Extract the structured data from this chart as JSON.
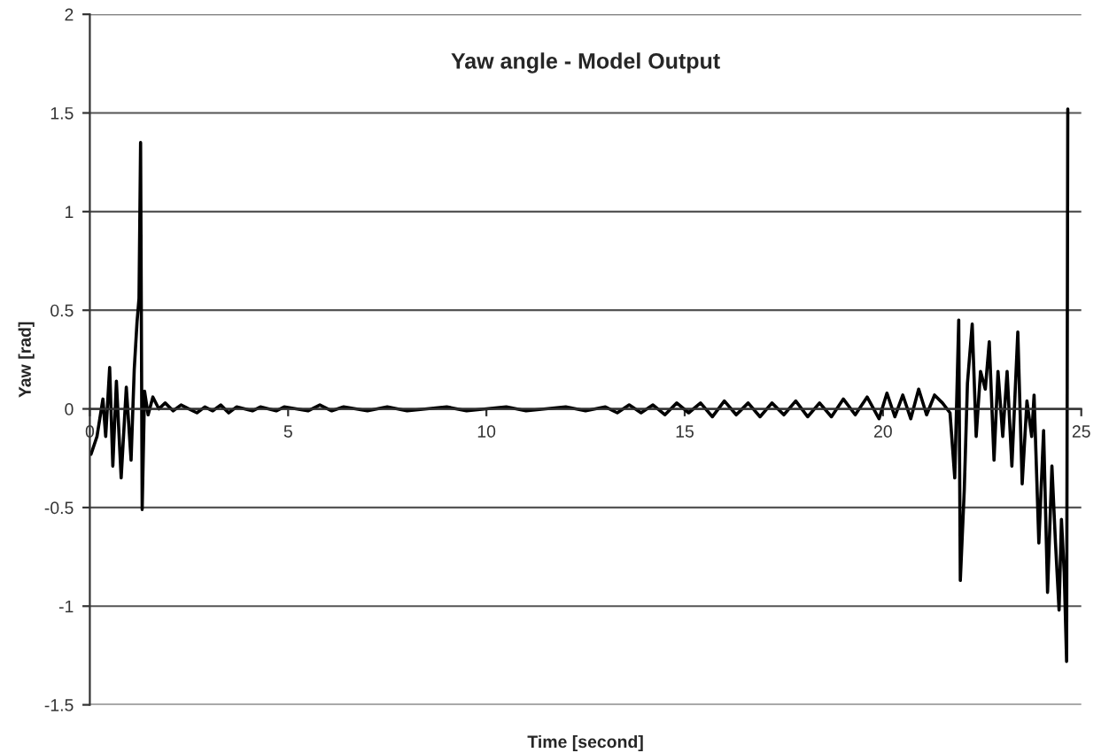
{
  "chart_data": {
    "type": "line",
    "title": "Yaw angle - Model Output",
    "xlabel": "Time [second]",
    "ylabel": "Yaw [rad]",
    "xlim": [
      0,
      25
    ],
    "xticks": [
      {
        "value": 0,
        "label": "0"
      },
      5,
      10,
      15,
      20,
      25
    ],
    "ylim": [
      -1.5,
      2
    ],
    "yticks": [
      -1.5,
      -1,
      -0.5,
      0,
      0.5,
      1,
      1.5,
      2
    ],
    "grid": "y",
    "legend": false,
    "marker": "none",
    "line_style": "solid",
    "series": [
      {
        "color": "#000000",
        "x": [
          0.03,
          0.18,
          0.33,
          0.4,
          0.5,
          0.58,
          0.67,
          0.79,
          0.92,
          1.04,
          1.12,
          1.19,
          1.24,
          1.28,
          1.32,
          1.38,
          1.47,
          1.59,
          1.74,
          1.9,
          2.1,
          2.3,
          2.5,
          2.7,
          2.9,
          3.1,
          3.3,
          3.5,
          3.7,
          3.9,
          4.1,
          4.3,
          4.5,
          4.7,
          4.9,
          5.2,
          5.5,
          5.8,
          6.1,
          6.4,
          6.7,
          7.0,
          7.5,
          8.0,
          8.5,
          9.0,
          9.5,
          10.0,
          10.5,
          11.0,
          11.5,
          12.0,
          12.5,
          13.0,
          13.3,
          13.6,
          13.9,
          14.2,
          14.5,
          14.8,
          15.1,
          15.4,
          15.7,
          16.0,
          16.3,
          16.6,
          16.9,
          17.2,
          17.5,
          17.8,
          18.1,
          18.4,
          18.7,
          19.0,
          19.3,
          19.6,
          19.9,
          20.1,
          20.3,
          20.5,
          20.7,
          20.9,
          21.1,
          21.3,
          21.5,
          21.69,
          21.81,
          21.91,
          21.95,
          22.05,
          22.13,
          22.25,
          22.35,
          22.46,
          22.58,
          22.68,
          22.8,
          22.9,
          23.02,
          23.13,
          23.25,
          23.4,
          23.51,
          23.63,
          23.75,
          23.81,
          23.93,
          24.05,
          24.15,
          24.26,
          24.35,
          24.44,
          24.5,
          24.57,
          24.63,
          24.66
        ],
        "values": [
          -0.23,
          -0.14,
          0.05,
          -0.14,
          0.21,
          -0.29,
          0.14,
          -0.35,
          0.11,
          -0.26,
          0.2,
          0.44,
          0.56,
          1.35,
          -0.51,
          0.09,
          -0.03,
          0.06,
          0.0,
          0.03,
          -0.01,
          0.02,
          0.0,
          -0.02,
          0.01,
          -0.01,
          0.02,
          -0.02,
          0.01,
          0.0,
          -0.01,
          0.01,
          0.0,
          -0.01,
          0.01,
          0.0,
          -0.01,
          0.02,
          -0.01,
          0.01,
          0.0,
          -0.01,
          0.01,
          -0.01,
          0.0,
          0.01,
          -0.01,
          0.0,
          0.01,
          -0.01,
          0.0,
          0.01,
          -0.01,
          0.01,
          -0.02,
          0.02,
          -0.02,
          0.02,
          -0.03,
          0.03,
          -0.02,
          0.03,
          -0.04,
          0.04,
          -0.03,
          0.03,
          -0.04,
          0.03,
          -0.03,
          0.04,
          -0.04,
          0.03,
          -0.04,
          0.05,
          -0.03,
          0.06,
          -0.05,
          0.08,
          -0.04,
          0.07,
          -0.05,
          0.1,
          -0.03,
          0.07,
          0.03,
          -0.02,
          -0.35,
          0.45,
          -0.87,
          -0.41,
          0.13,
          0.43,
          -0.14,
          0.19,
          0.1,
          0.34,
          -0.26,
          0.19,
          -0.14,
          0.19,
          -0.29,
          0.39,
          -0.38,
          0.04,
          -0.14,
          0.07,
          -0.68,
          -0.11,
          -0.93,
          -0.29,
          -0.68,
          -1.02,
          -0.56,
          -0.83,
          -1.28,
          1.52
        ]
      }
    ]
  }
}
